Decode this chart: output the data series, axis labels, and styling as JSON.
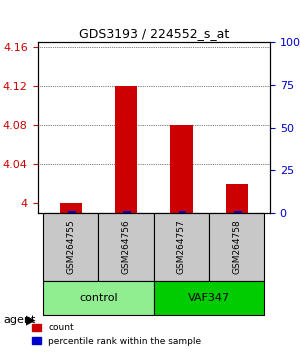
{
  "title": "GDS3193 / 224552_s_at",
  "samples": [
    "GSM264755",
    "GSM264756",
    "GSM264757",
    "GSM264758"
  ],
  "groups": [
    "control",
    "control",
    "VAF347",
    "VAF347"
  ],
  "group_colors": {
    "control": "#90EE90",
    "VAF347": "#00CC00"
  },
  "red_values": [
    4.0,
    4.12,
    4.08,
    4.02
  ],
  "blue_values": [
    0.5,
    1.0,
    1.0,
    1.0
  ],
  "ylim": [
    3.99,
    4.165
  ],
  "yticks": [
    4.0,
    4.04,
    4.08,
    4.12,
    4.16
  ],
  "ytick_labels": [
    "4",
    "4.04",
    "4.08",
    "4.12",
    "4.16"
  ],
  "right_yticks": [
    0.0,
    0.25,
    0.5,
    0.75,
    1.0
  ],
  "right_ytick_labels": [
    "0",
    "25",
    "50",
    "75",
    "100%"
  ],
  "bar_width": 0.4,
  "red_color": "#CC0000",
  "blue_color": "#0000CC",
  "grid_color": "#000000",
  "label_color_red": "#CC0000",
  "label_color_blue": "#0000CC",
  "legend_count": "count",
  "legend_percentile": "percentile rank within the sample",
  "agent_label": "agent",
  "ybase": 3.99
}
